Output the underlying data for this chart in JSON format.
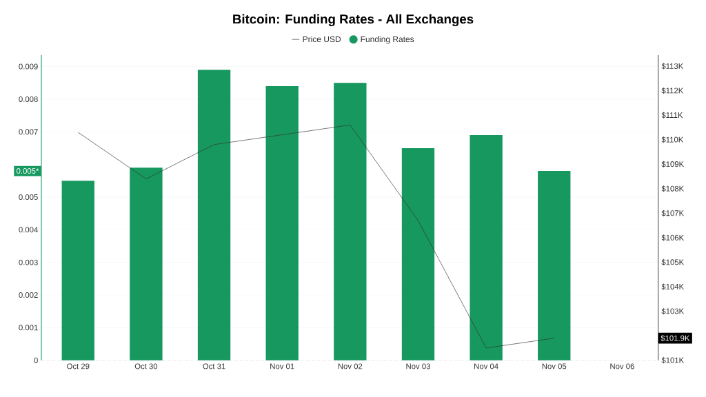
{
  "chart_data": {
    "type": "bar",
    "title": "Bitcoin: Funding Rates - All Exchanges",
    "categories": [
      "Oct 29",
      "Oct 30",
      "Oct 31",
      "Nov 01",
      "Nov 02",
      "Nov 03",
      "Nov 04",
      "Nov 05",
      "Nov 06"
    ],
    "series": [
      {
        "name": "Price USD",
        "type": "line",
        "axis": "y2",
        "color": "#333333",
        "values": [
          110.3,
          108.4,
          109.8,
          110.2,
          110.6,
          106.7,
          101.5,
          101.9,
          null
        ]
      },
      {
        "name": "Funding Rates",
        "color": "#16985f",
        "values": [
          0.0055,
          0.0059,
          0.0089,
          0.0084,
          0.0085,
          0.0065,
          0.0069,
          0.0058,
          null
        ]
      }
    ],
    "ylim": [
      0,
      0.00935
    ],
    "yticks": [
      0,
      0.001,
      0.002,
      0.003,
      0.004,
      0.005,
      0.007,
      0.008,
      0.009
    ],
    "y2lim": [
      101,
      113.45
    ],
    "y2ticks": [
      {
        "value": 101,
        "label": "$101K"
      },
      {
        "value": 103,
        "label": "$103K"
      },
      {
        "value": 104,
        "label": "$104K"
      },
      {
        "value": 105,
        "label": "$105K"
      },
      {
        "value": 106,
        "label": "$106K"
      },
      {
        "value": 107,
        "label": "$107K"
      },
      {
        "value": 108,
        "label": "$108K"
      },
      {
        "value": 109,
        "label": "$109K"
      },
      {
        "value": 110,
        "label": "$110K"
      },
      {
        "value": 111,
        "label": "$111K"
      },
      {
        "value": 112,
        "label": "$112K"
      },
      {
        "value": 113,
        "label": "$113K"
      }
    ],
    "annotations": [
      "0.005*",
      "$101.9K"
    ],
    "grid": "y",
    "legend": "top"
  }
}
